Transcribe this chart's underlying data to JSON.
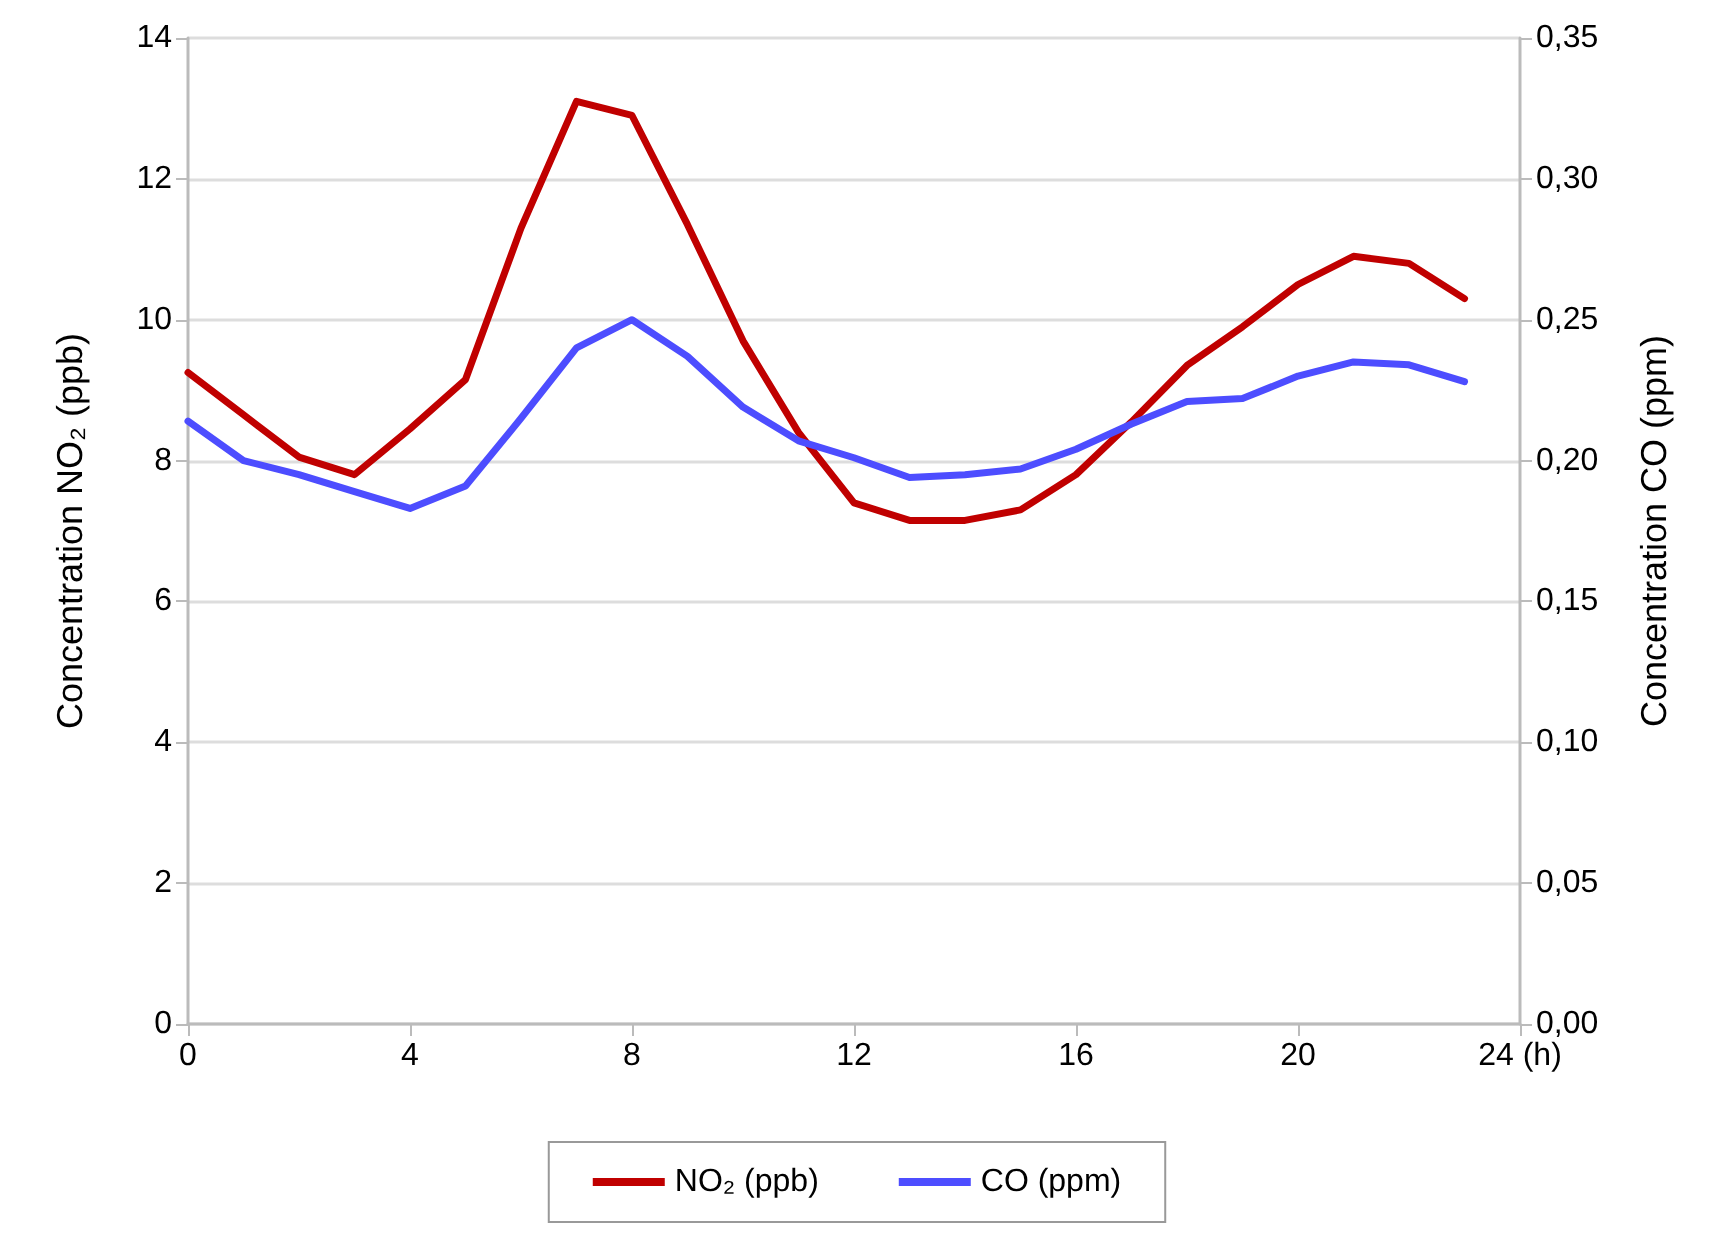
{
  "chart_data": {
    "type": "line",
    "ylabel": "Concentration NO₂ (ppb)",
    "y2label": "Concentration CO (ppm)",
    "x": [
      0,
      1,
      2,
      3,
      4,
      5,
      6,
      7,
      8,
      9,
      10,
      11,
      12,
      13,
      14,
      15,
      16,
      17,
      18,
      19,
      20,
      21,
      22,
      23
    ],
    "series": [
      {
        "name": "NO₂ (ppb)",
        "color": "#c00000",
        "values": [
          9.25,
          8.65,
          8.05,
          7.8,
          8.45,
          9.15,
          11.3,
          13.1,
          12.9,
          11.35,
          9.7,
          8.4,
          7.4,
          7.15,
          7.15,
          7.3,
          7.8,
          8.55,
          9.35,
          9.9,
          10.5,
          10.9,
          10.8,
          10.3
        ]
      },
      {
        "name": "CO (ppm)",
        "color": "#4d4dff",
        "axis": "y2",
        "values": [
          0.214,
          0.2,
          0.195,
          0.189,
          0.183,
          0.191,
          0.215,
          0.24,
          0.25,
          0.237,
          0.219,
          0.207,
          0.201,
          0.194,
          0.195,
          0.197,
          0.204,
          0.213,
          0.221,
          0.222,
          0.23,
          0.235,
          0.234,
          0.228
        ]
      }
    ],
    "xlim": [
      0,
      24
    ],
    "xticks": [
      0,
      4,
      8,
      12,
      16,
      20,
      {
        "value": 24,
        "label": "24 (h)"
      }
    ],
    "ylim": [
      0,
      14
    ],
    "yticks": [
      0,
      2,
      4,
      6,
      8,
      10,
      12,
      14
    ],
    "y2lim": [
      0,
      0.35
    ],
    "y2ticks": [
      {
        "value": 0,
        "label": "0,00"
      },
      {
        "value": 0.05,
        "label": "0,05"
      },
      {
        "value": 0.1,
        "label": "0,10"
      },
      {
        "value": 0.15,
        "label": "0,15"
      },
      {
        "value": 0.2,
        "label": "0,20"
      },
      {
        "value": 0.25,
        "label": "0,25"
      },
      {
        "value": 0.3,
        "label": "0,30"
      },
      {
        "value": 0.35,
        "label": "0,35"
      }
    ],
    "grid": "y",
    "legend": "bottom",
    "marker": "none",
    "line_style": "solid"
  }
}
